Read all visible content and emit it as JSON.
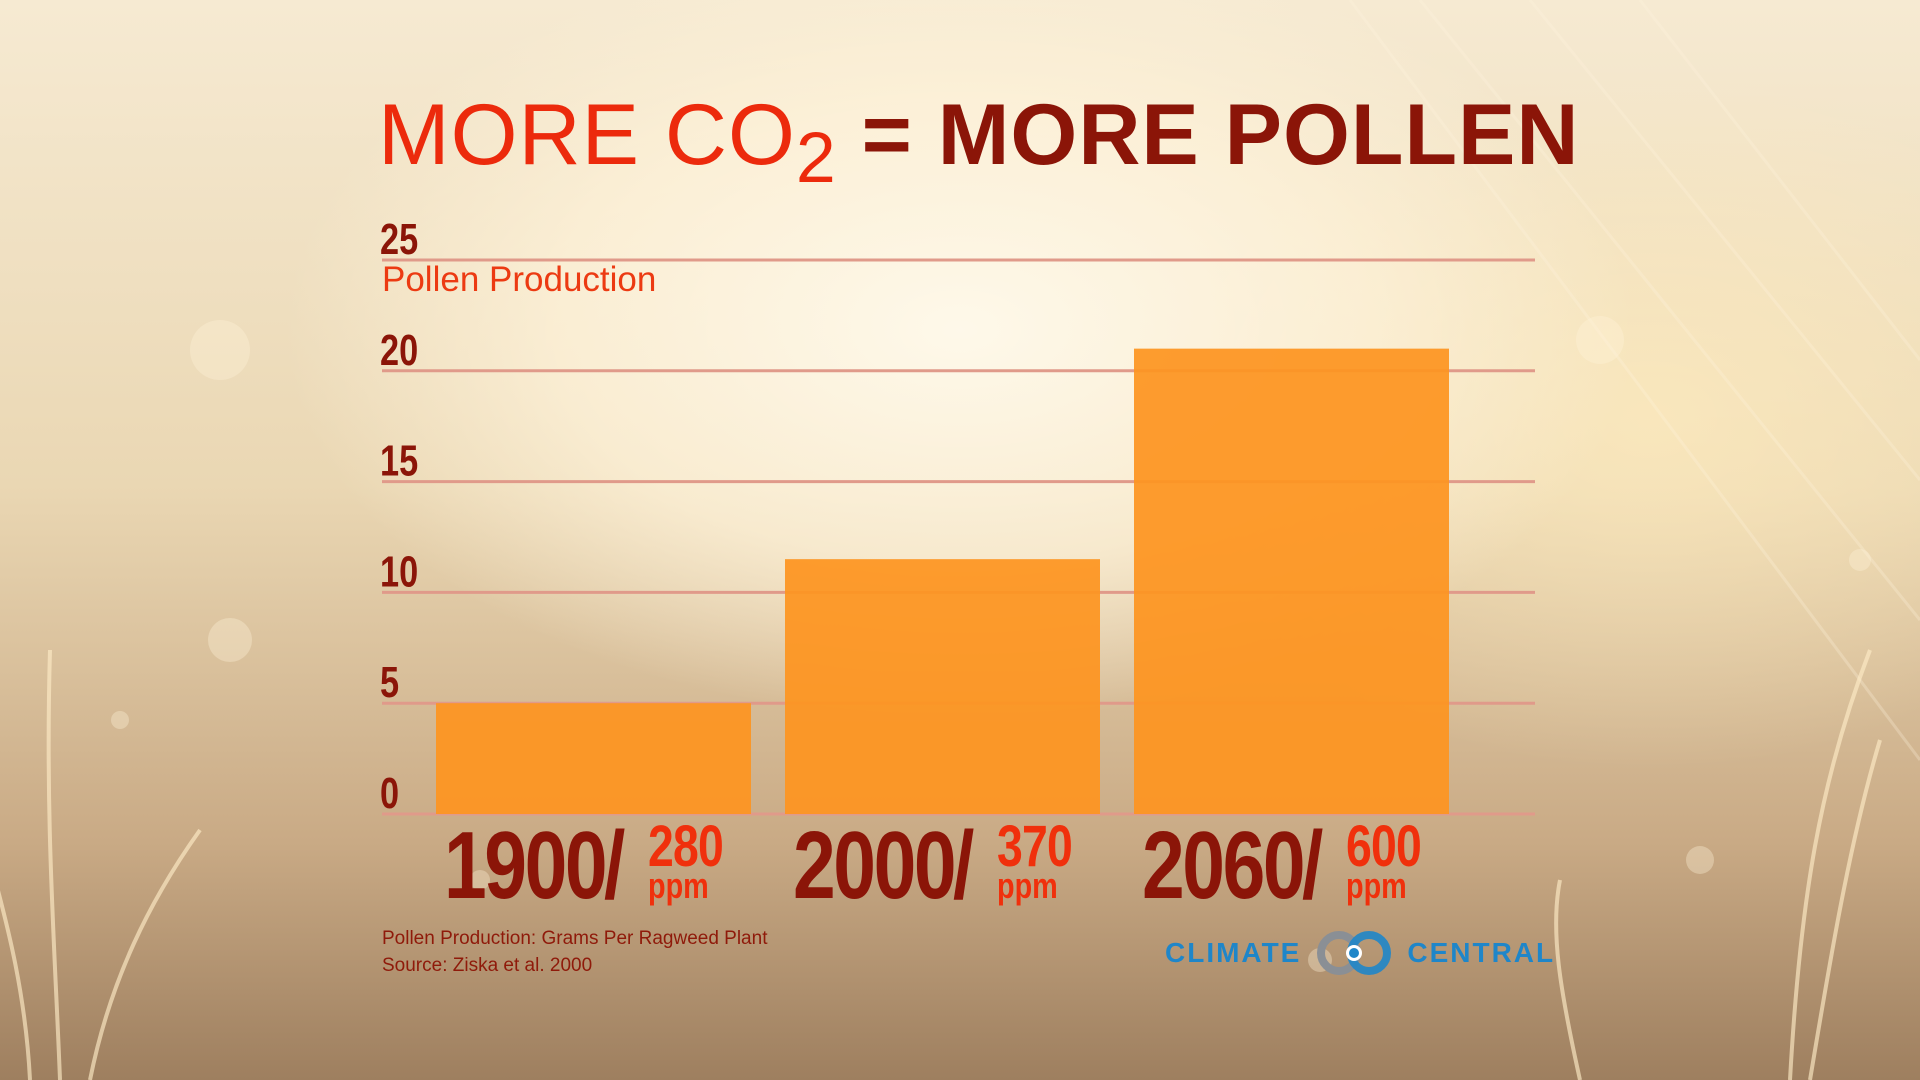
{
  "title": {
    "part1": "MORE CO",
    "subscript": "2",
    "equals": " = ",
    "part2": "MORE POLLEN"
  },
  "footnotes": {
    "line1": "Pollen Production: Grams Per Ragweed Plant",
    "line2": "Source: Ziska et al. 2000"
  },
  "logo": {
    "left_text": "CLIMATE",
    "right_text": "CENTRAL",
    "icon": "climate-central-rings-icon"
  },
  "colors": {
    "bar": "#fd9520",
    "gridline": "#e09a8a",
    "title_red": "#ec2a0c",
    "title_dark": "#8b1508",
    "tick": "#8b1508",
    "ppm": "#f0300c",
    "logo_blue": "#1f86c9"
  },
  "chart_data": {
    "type": "bar",
    "title": "MORE CO2 = MORE POLLEN",
    "ylabel": "Pollen Production",
    "xlabel": "",
    "ylim": [
      0,
      25
    ],
    "yticks": [
      0,
      5,
      10,
      15,
      20,
      25
    ],
    "grid": true,
    "categories": [
      {
        "year": "1900",
        "sep": "/",
        "co2": "280",
        "unit": "ppm"
      },
      {
        "year": "2000",
        "sep": "/",
        "co2": "370",
        "unit": "ppm"
      },
      {
        "year": "2060",
        "sep": "/",
        "co2": "600",
        "unit": "ppm"
      }
    ],
    "values": [
      5,
      11.5,
      21
    ]
  }
}
